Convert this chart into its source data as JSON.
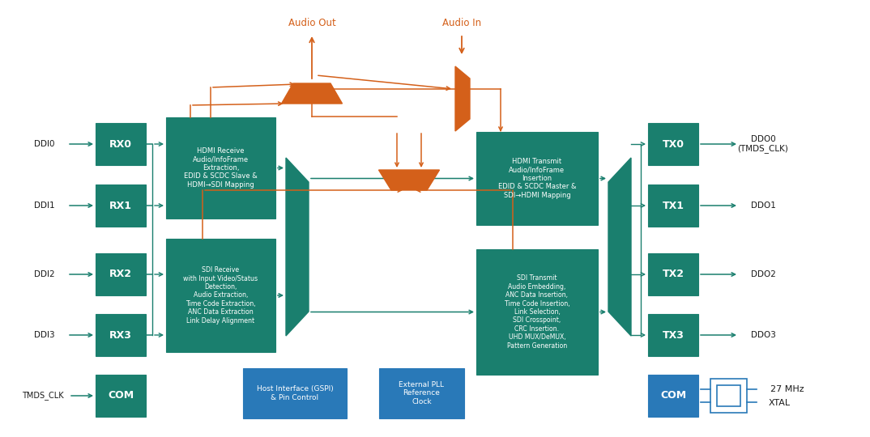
{
  "teal": "#1a7f6e",
  "blue": "#2979b8",
  "orange": "#d4601a",
  "white": "#ffffff",
  "black": "#1a1a1a",
  "bg": "#ffffff",
  "fig_w": 10.74,
  "fig_h": 5.4,
  "dpi": 100,
  "rx_labels": [
    "RX0",
    "RX1",
    "RX2",
    "RX3"
  ],
  "ddi_labels": [
    "DDI0",
    "DDI1",
    "DDI2",
    "DDI3"
  ],
  "tx_labels": [
    "TX0",
    "TX1",
    "TX2",
    "TX3"
  ],
  "ddo_labels": [
    "DDO0\n(TMDS_CLK)",
    "DDO1",
    "DDO2",
    "DDO3"
  ],
  "hdmi_rx_text": "HDMI Receive\nAudio/InfoFrame\nExtraction,\nEDID & SCDC Slave &\nHDMI→SDI Mapping",
  "sdi_rx_text": "SDI Receive\nwith Input Video/Status\nDetection,\nAudio Extraction,\nTime Code Extraction,\nANC Data Extraction\nLink Delay Alignment",
  "hdmi_tx_text": "HDMI Transmit\nAudio/InfoFrame\nInsertion\nEDID & SCDC Master &\nSDI→HDMI Mapping",
  "sdi_tx_text": "SDI Transmit\nAudio Embedding,\nANC Data Insertion,\nTime Code Insertion,\nLink Selection,\nSDI Crosspoint,\nCRC Insertion.\nUHD MUX/DeMUX,\nPattern Generation",
  "host_text": "Host Interface (GSPI)\n& Pin Control",
  "ext_text": "External PLL\nReference\nClock",
  "audio_out_text": "Audio Out",
  "audio_in_text": "Audio In",
  "mhz_text": "27 MHz",
  "xtal_text": "XTAL",
  "tmds_text": "TMDS_CLK",
  "com_text": "COM"
}
